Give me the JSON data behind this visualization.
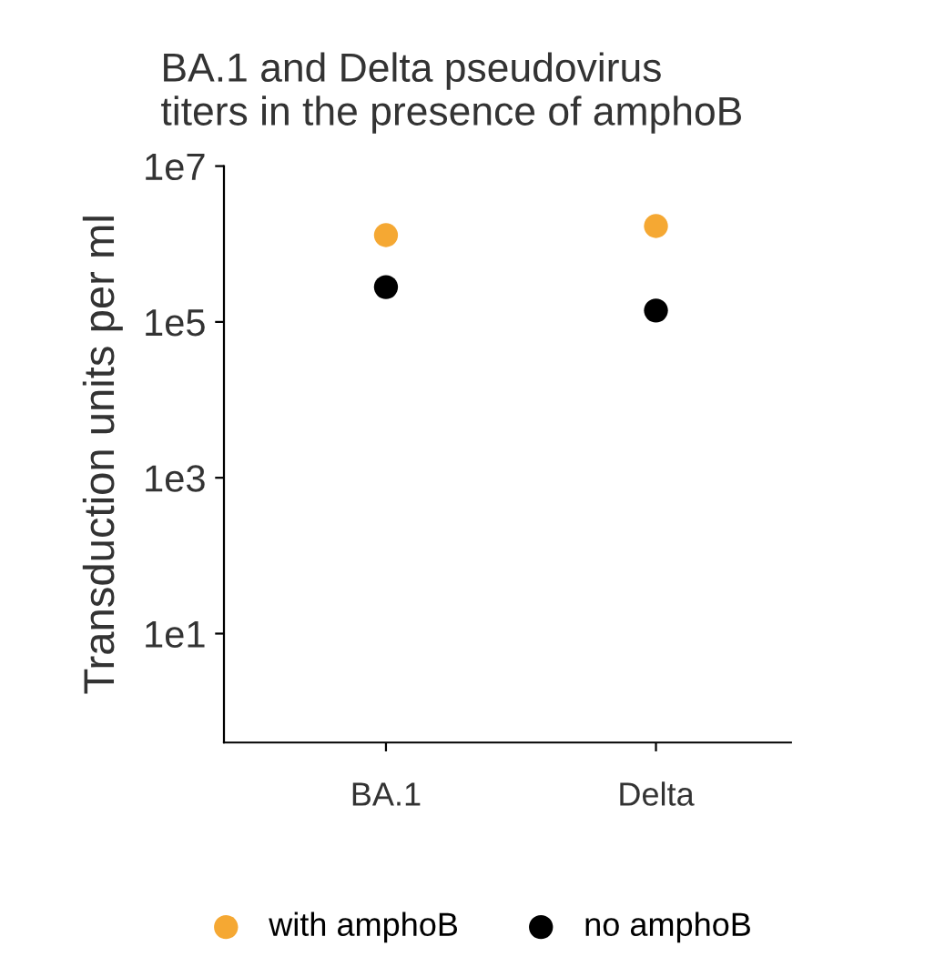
{
  "chart_data": {
    "type": "scatter",
    "title": "BA.1 and Delta pseudovirus\ntiters in the presence of amphoB",
    "ylabel": "Transduction units per ml",
    "categories": [
      "BA.1",
      "Delta"
    ],
    "series": [
      {
        "name": "with amphoB",
        "color": "#f5a833",
        "values": [
          1300000,
          1700000
        ]
      },
      {
        "name": "no amphoB",
        "color": "#000000",
        "values": [
          280000,
          140000
        ]
      }
    ],
    "log": true,
    "ylim": [
      0.4,
      10000000
    ],
    "yticks": [
      {
        "value": 10,
        "label": "1e1"
      },
      {
        "value": 1000,
        "label": "1e3"
      },
      {
        "value": 100000,
        "label": "1e5"
      },
      {
        "value": 10000000,
        "label": "1e7"
      }
    ],
    "grid": false,
    "legend": "bottom",
    "marker": "circle"
  }
}
